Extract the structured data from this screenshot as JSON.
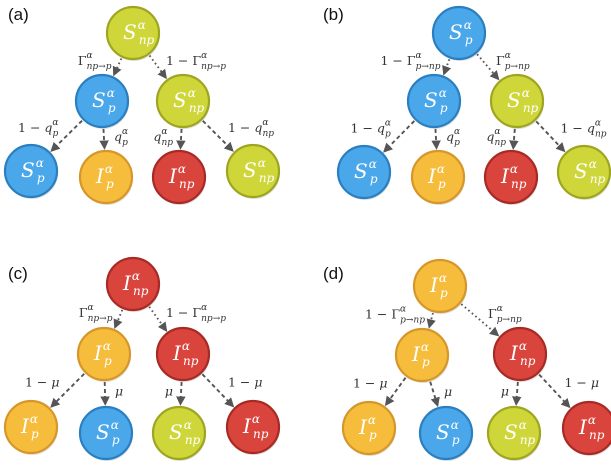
{
  "colors": {
    "S_np": {
      "fill": "#cfd63a",
      "stroke": "#9ea51f"
    },
    "S_p": {
      "fill": "#4aa7ea",
      "stroke": "#2a7fc0"
    },
    "I_p": {
      "fill": "#f6bc3c",
      "stroke": "#d7962a"
    },
    "I_np": {
      "fill": "#d9443d",
      "stroke": "#a72a24"
    }
  },
  "panels": [
    {
      "label": "(a)",
      "root": {
        "sym": "S",
        "sub": "np",
        "sup": "α",
        "type": "S_np"
      },
      "left_mid": {
        "sym": "S",
        "sub": "p",
        "sup": "α",
        "type": "S_p"
      },
      "right_mid": {
        "sym": "S",
        "sub": "np",
        "sup": "α",
        "type": "S_np"
      },
      "leaves": [
        {
          "sym": "S",
          "sub": "p",
          "sup": "α",
          "type": "S_p"
        },
        {
          "sym": "I",
          "sub": "p",
          "sup": "α",
          "type": "I_p"
        },
        {
          "sym": "I",
          "sub": "np",
          "sup": "α",
          "type": "I_np"
        },
        {
          "sym": "S",
          "sub": "np",
          "sup": "α",
          "type": "S_np"
        }
      ],
      "top_left_label": "Γ",
      "top_left_sub": "np→p",
      "top_left_sup": "α",
      "top_left_prefix": "",
      "top_right_label": "Γ",
      "top_right_sub": "np→p",
      "top_right_sup": "α",
      "top_right_prefix": "1 − ",
      "edge_labels": [
        {
          "prefix": "1 − ",
          "sym": "q",
          "sub": "p",
          "sup": "α"
        },
        {
          "prefix": "",
          "sym": "q",
          "sub": "p",
          "sup": "α"
        },
        {
          "prefix": "",
          "sym": "q",
          "sub": "np",
          "sup": "α"
        },
        {
          "prefix": "1 − ",
          "sym": "q",
          "sub": "np",
          "sup": "α"
        }
      ]
    },
    {
      "label": "(b)",
      "root": {
        "sym": "S",
        "sub": "p",
        "sup": "α",
        "type": "S_p"
      },
      "left_mid": {
        "sym": "S",
        "sub": "p",
        "sup": "α",
        "type": "S_p"
      },
      "right_mid": {
        "sym": "S",
        "sub": "np",
        "sup": "α",
        "type": "S_np"
      },
      "leaves": [
        {
          "sym": "S",
          "sub": "p",
          "sup": "α",
          "type": "S_p"
        },
        {
          "sym": "I",
          "sub": "p",
          "sup": "α",
          "type": "I_p"
        },
        {
          "sym": "I",
          "sub": "np",
          "sup": "α",
          "type": "I_np"
        },
        {
          "sym": "S",
          "sub": "np",
          "sup": "α",
          "type": "S_np"
        }
      ],
      "top_left_label": "Γ",
      "top_left_sub": "p→np",
      "top_left_sup": "α",
      "top_left_prefix": "1 − ",
      "top_right_label": "Γ",
      "top_right_sub": "p→np",
      "top_right_sup": "α",
      "top_right_prefix": "",
      "edge_labels": [
        {
          "prefix": "1 − ",
          "sym": "q",
          "sub": "p",
          "sup": "α"
        },
        {
          "prefix": "",
          "sym": "q",
          "sub": "p",
          "sup": "α"
        },
        {
          "prefix": "",
          "sym": "q",
          "sub": "np",
          "sup": "α"
        },
        {
          "prefix": "1 − ",
          "sym": "q",
          "sub": "np",
          "sup": "α"
        }
      ]
    },
    {
      "label": "(c)",
      "root": {
        "sym": "I",
        "sub": "np",
        "sup": "α",
        "type": "I_np"
      },
      "left_mid": {
        "sym": "I",
        "sub": "p",
        "sup": "α",
        "type": "I_p"
      },
      "right_mid": {
        "sym": "I",
        "sub": "np",
        "sup": "α",
        "type": "I_np"
      },
      "leaves": [
        {
          "sym": "I",
          "sub": "p",
          "sup": "α",
          "type": "I_p"
        },
        {
          "sym": "S",
          "sub": "p",
          "sup": "α",
          "type": "S_p"
        },
        {
          "sym": "S",
          "sub": "np",
          "sup": "α",
          "type": "S_np"
        },
        {
          "sym": "I",
          "sub": "np",
          "sup": "α",
          "type": "I_np"
        }
      ],
      "top_left_label": "Γ",
      "top_left_sub": "np→p",
      "top_left_sup": "α",
      "top_left_prefix": "",
      "top_right_label": "Γ",
      "top_right_sub": "np→p",
      "top_right_sup": "α",
      "top_right_prefix": "1 − ",
      "edge_labels": [
        {
          "prefix": "1 − ",
          "sym": "μ",
          "sub": "",
          "sup": ""
        },
        {
          "prefix": "",
          "sym": "μ",
          "sub": "",
          "sup": ""
        },
        {
          "prefix": "",
          "sym": "μ",
          "sub": "",
          "sup": ""
        },
        {
          "prefix": "1 − ",
          "sym": "μ",
          "sub": "",
          "sup": ""
        }
      ]
    },
    {
      "label": "(d)",
      "root": {
        "sym": "I",
        "sub": "p",
        "sup": "α",
        "type": "I_p"
      },
      "left_mid": {
        "sym": "I",
        "sub": "p",
        "sup": "α",
        "type": "I_p"
      },
      "right_mid": {
        "sym": "I",
        "sub": "np",
        "sup": "α",
        "type": "I_np"
      },
      "leaves": [
        {
          "sym": "I",
          "sub": "p",
          "sup": "α",
          "type": "I_p"
        },
        {
          "sym": "S",
          "sub": "p",
          "sup": "α",
          "type": "S_p"
        },
        {
          "sym": "S",
          "sub": "np",
          "sup": "α",
          "type": "S_np"
        },
        {
          "sym": "I",
          "sub": "np",
          "sup": "α",
          "type": "I_np"
        }
      ],
      "top_left_label": "Γ",
      "top_left_sub": "p→np",
      "top_left_sup": "α",
      "top_left_prefix": "1 − ",
      "top_right_label": "Γ",
      "top_right_sub": "p→np",
      "top_right_sup": "α",
      "top_right_prefix": "",
      "edge_labels": [
        {
          "prefix": "1 − ",
          "sym": "μ",
          "sub": "",
          "sup": ""
        },
        {
          "prefix": "",
          "sym": "μ",
          "sub": "",
          "sup": ""
        },
        {
          "prefix": "",
          "sym": "μ",
          "sub": "",
          "sup": ""
        },
        {
          "prefix": "1 − ",
          "sym": "μ",
          "sub": "",
          "sup": ""
        }
      ]
    }
  ]
}
